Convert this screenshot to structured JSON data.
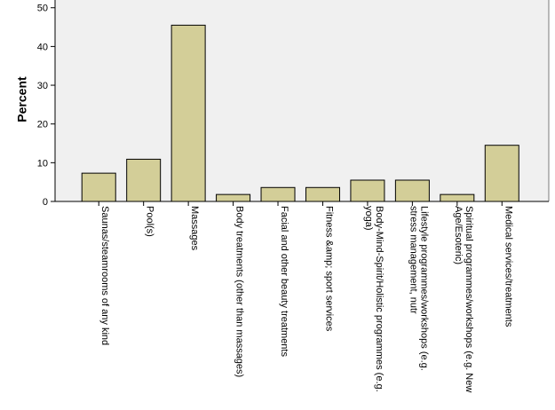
{
  "chart_data": {
    "type": "bar",
    "y_label": "Percent",
    "categories": [
      "Saunas/steamrooms of any kind",
      "Pool(s)",
      "Massages",
      "Body treatments (other than massages)",
      "Facial and other beauty treatments",
      "Fitness &amp; sport services",
      "Body-Mind-Spirit/Holistic programmes (e.g. yoga)",
      "Lifestyle programmes/workshops (e.g. stress management, nutr",
      "Spiritual programmes/workshops (e.g. New Age/Esoteric)",
      "Medical services/treatments"
    ],
    "values": [
      7.3,
      10.9,
      45.5,
      1.8,
      3.6,
      3.6,
      5.5,
      5.5,
      1.8,
      14.5
    ],
    "color": "#d3ce98",
    "ylim": [
      0,
      52
    ],
    "yticks": [
      0,
      10,
      20,
      30,
      40,
      50
    ],
    "grid": false
  }
}
